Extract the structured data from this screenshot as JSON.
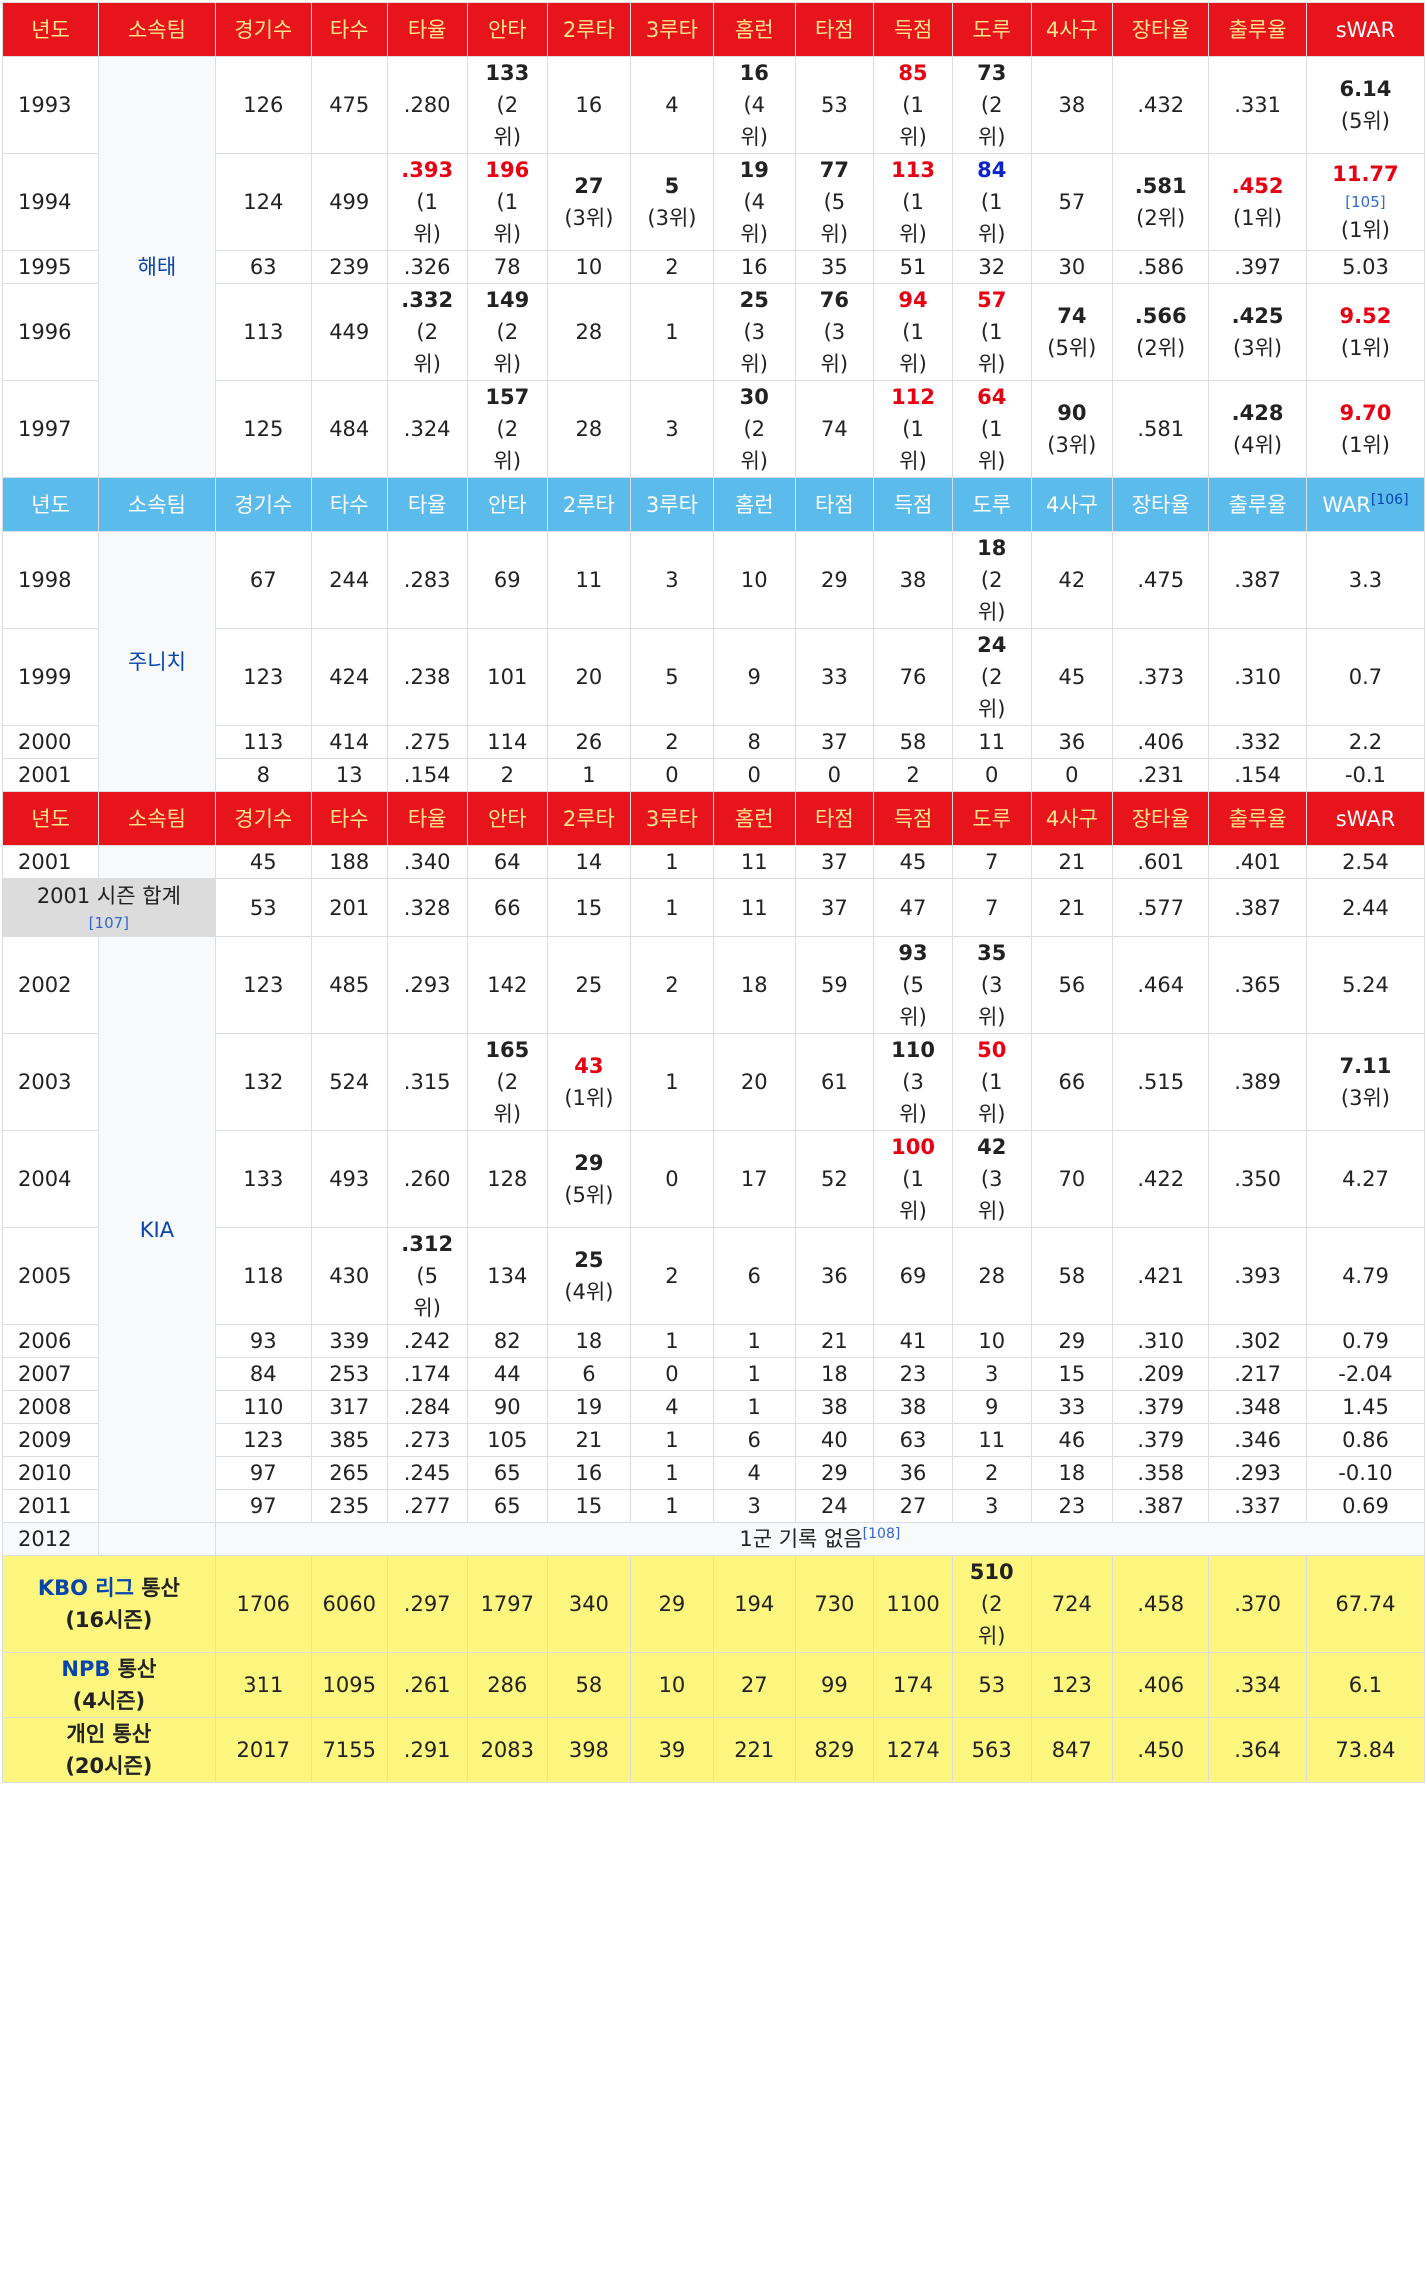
{
  "headers": {
    "year": "년도",
    "team": "소속팀",
    "games": "경기수",
    "ab": "타수",
    "avg": "타율",
    "hits": "안타",
    "doubles": "2루타",
    "triples": "3루타",
    "hr": "홈런",
    "rbi": "타점",
    "runs": "득점",
    "sb": "도루",
    "bb": "4사구",
    "slg": "장타율",
    "obp": "출루율",
    "swar": "sWAR",
    "war": "WAR"
  },
  "refs": {
    "r105": "[105]",
    "r106": "[106]",
    "r107": "[107]",
    "r108": "[108]"
  },
  "teams": {
    "haitai": "해태",
    "chunichi": "주니치",
    "kia": "KIA"
  },
  "rank": {
    "r1p": "(1위)",
    "r2p": "(2위)",
    "r3p": "(3위)",
    "r4p": "(4위)",
    "r5p": "(5위)",
    "r1a": "(1",
    "r2a": "(2",
    "r3a": "(3",
    "r4a": "(4",
    "r5a": "(5",
    "wi": "위)"
  },
  "kbo1": {
    "y1993": {
      "year": "1993",
      "g": "126",
      "ab": "475",
      "avg": ".280",
      "h": "133",
      "d": "16",
      "t": "4",
      "hr": "16",
      "rbi": "53",
      "r": "85",
      "sb": "73",
      "bb": "38",
      "slg": ".432",
      "obp": ".331",
      "war": "6.14"
    },
    "y1994": {
      "year": "1994",
      "g": "124",
      "ab": "499",
      "avg": ".393",
      "h": "196",
      "d": "27",
      "t": "5",
      "hr": "19",
      "rbi": "77",
      "r": "113",
      "sb": "84",
      "bb": "57",
      "slg": ".581",
      "obp": ".452",
      "war": "11.77"
    },
    "y1995": {
      "year": "1995",
      "g": "63",
      "ab": "239",
      "avg": ".326",
      "h": "78",
      "d": "10",
      "t": "2",
      "hr": "16",
      "rbi": "35",
      "r": "51",
      "sb": "32",
      "bb": "30",
      "slg": ".586",
      "obp": ".397",
      "war": "5.03"
    },
    "y1996": {
      "year": "1996",
      "g": "113",
      "ab": "449",
      "avg": ".332",
      "h": "149",
      "d": "28",
      "t": "1",
      "hr": "25",
      "rbi": "76",
      "r": "94",
      "sb": "57",
      "bb": "74",
      "slg": ".566",
      "obp": ".425",
      "war": "9.52"
    },
    "y1997": {
      "year": "1997",
      "g": "125",
      "ab": "484",
      "avg": ".324",
      "h": "157",
      "d": "28",
      "t": "3",
      "hr": "30",
      "rbi": "74",
      "r": "112",
      "sb": "64",
      "bb": "90",
      "slg": ".581",
      "obp": ".428",
      "war": "9.70"
    }
  },
  "npb": {
    "y1998": {
      "year": "1998",
      "g": "67",
      "ab": "244",
      "avg": ".283",
      "h": "69",
      "d": "11",
      "t": "3",
      "hr": "10",
      "rbi": "29",
      "r": "38",
      "sb": "18",
      "bb": "42",
      "slg": ".475",
      "obp": ".387",
      "war": "3.3"
    },
    "y1999": {
      "year": "1999",
      "g": "123",
      "ab": "424",
      "avg": ".238",
      "h": "101",
      "d": "20",
      "t": "5",
      "hr": "9",
      "rbi": "33",
      "r": "76",
      "sb": "24",
      "bb": "45",
      "slg": ".373",
      "obp": ".310",
      "war": "0.7"
    },
    "y2000": {
      "year": "2000",
      "g": "113",
      "ab": "414",
      "avg": ".275",
      "h": "114",
      "d": "26",
      "t": "2",
      "hr": "8",
      "rbi": "37",
      "r": "58",
      "sb": "11",
      "bb": "36",
      "slg": ".406",
      "obp": ".332",
      "war": "2.2"
    },
    "y2001": {
      "year": "2001",
      "g": "8",
      "ab": "13",
      "avg": ".154",
      "h": "2",
      "d": "1",
      "t": "0",
      "hr": "0",
      "rbi": "0",
      "r": "2",
      "sb": "0",
      "bb": "0",
      "slg": ".231",
      "obp": ".154",
      "war": "-0.1"
    }
  },
  "kbo2": {
    "y2001": {
      "year": "2001",
      "g": "45",
      "ab": "188",
      "avg": ".340",
      "h": "64",
      "d": "14",
      "t": "1",
      "hr": "11",
      "rbi": "37",
      "r": "45",
      "sb": "7",
      "bb": "21",
      "slg": ".601",
      "obp": ".401",
      "war": "2.54"
    },
    "s2001": {
      "label": "2001 시즌 합계",
      "g": "53",
      "ab": "201",
      "avg": ".328",
      "h": "66",
      "d": "15",
      "t": "1",
      "hr": "11",
      "rbi": "37",
      "r": "47",
      "sb": "7",
      "bb": "21",
      "slg": ".577",
      "obp": ".387",
      "war": "2.44"
    },
    "y2002": {
      "year": "2002",
      "g": "123",
      "ab": "485",
      "avg": ".293",
      "h": "142",
      "d": "25",
      "t": "2",
      "hr": "18",
      "rbi": "59",
      "r": "93",
      "sb": "35",
      "bb": "56",
      "slg": ".464",
      "obp": ".365",
      "war": "5.24"
    },
    "y2003": {
      "year": "2003",
      "g": "132",
      "ab": "524",
      "avg": ".315",
      "h": "165",
      "d": "43",
      "t": "1",
      "hr": "20",
      "rbi": "61",
      "r": "110",
      "sb": "50",
      "bb": "66",
      "slg": ".515",
      "obp": ".389",
      "war": "7.11"
    },
    "y2004": {
      "year": "2004",
      "g": "133",
      "ab": "493",
      "avg": ".260",
      "h": "128",
      "d": "29",
      "t": "0",
      "hr": "17",
      "rbi": "52",
      "r": "100",
      "sb": "42",
      "bb": "70",
      "slg": ".422",
      "obp": ".350",
      "war": "4.27"
    },
    "y2005": {
      "year": "2005",
      "g": "118",
      "ab": "430",
      "avg": ".312",
      "h": "134",
      "d": "25",
      "t": "2",
      "hr": "6",
      "rbi": "36",
      "r": "69",
      "sb": "28",
      "bb": "58",
      "slg": ".421",
      "obp": ".393",
      "war": "4.79"
    },
    "y2006": {
      "year": "2006",
      "g": "93",
      "ab": "339",
      "avg": ".242",
      "h": "82",
      "d": "18",
      "t": "1",
      "hr": "1",
      "rbi": "21",
      "r": "41",
      "sb": "10",
      "bb": "29",
      "slg": ".310",
      "obp": ".302",
      "war": "0.79"
    },
    "y2007": {
      "year": "2007",
      "g": "84",
      "ab": "253",
      "avg": ".174",
      "h": "44",
      "d": "6",
      "t": "0",
      "hr": "1",
      "rbi": "18",
      "r": "23",
      "sb": "3",
      "bb": "15",
      "slg": ".209",
      "obp": ".217",
      "war": "-2.04"
    },
    "y2008": {
      "year": "2008",
      "g": "110",
      "ab": "317",
      "avg": ".284",
      "h": "90",
      "d": "19",
      "t": "4",
      "hr": "1",
      "rbi": "38",
      "r": "38",
      "sb": "9",
      "bb": "33",
      "slg": ".379",
      "obp": ".348",
      "war": "1.45"
    },
    "y2009": {
      "year": "2009",
      "g": "123",
      "ab": "385",
      "avg": ".273",
      "h": "105",
      "d": "21",
      "t": "1",
      "hr": "6",
      "rbi": "40",
      "r": "63",
      "sb": "11",
      "bb": "46",
      "slg": ".379",
      "obp": ".346",
      "war": "0.86"
    },
    "y2010": {
      "year": "2010",
      "g": "97",
      "ab": "265",
      "avg": ".245",
      "h": "65",
      "d": "16",
      "t": "1",
      "hr": "4",
      "rbi": "29",
      "r": "36",
      "sb": "2",
      "bb": "18",
      "slg": ".358",
      "obp": ".293",
      "war": "-0.10"
    },
    "y2011": {
      "year": "2011",
      "g": "97",
      "ab": "235",
      "avg": ".277",
      "h": "65",
      "d": "15",
      "t": "1",
      "hr": "3",
      "rbi": "24",
      "r": "27",
      "sb": "3",
      "bb": "23",
      "slg": ".387",
      "obp": ".337",
      "war": "0.69"
    },
    "y2012": {
      "year": "2012",
      "note": "1군 기록 없음"
    }
  },
  "totals": {
    "kbo": {
      "league": "KBO 리그",
      "suffix": "통산",
      "seasons": "(16시즌)",
      "g": "1706",
      "ab": "6060",
      "avg": ".297",
      "h": "1797",
      "d": "340",
      "t": "29",
      "hr": "194",
      "rbi": "730",
      "r": "1100",
      "sb": "510",
      "bb": "724",
      "slg": ".458",
      "obp": ".370",
      "war": "67.74"
    },
    "npb": {
      "league": "NPB",
      "suffix": "통산",
      "seasons": "(4시즌)",
      "g": "311",
      "ab": "1095",
      "avg": ".261",
      "h": "286",
      "d": "58",
      "t": "10",
      "hr": "27",
      "rbi": "99",
      "r": "174",
      "sb": "53",
      "bb": "123",
      "slg": ".406",
      "obp": ".334",
      "war": "6.1"
    },
    "all": {
      "label": "개인 통산",
      "seasons": "(20시즌)",
      "g": "2017",
      "ab": "7155",
      "avg": ".291",
      "h": "2083",
      "d": "398",
      "t": "39",
      "hr": "221",
      "rbi": "829",
      "r": "1274",
      "sb": "563",
      "bb": "847",
      "slg": ".450",
      "obp": ".364",
      "war": "73.84"
    }
  },
  "colors": {
    "kbo_header": "#e8141c",
    "kbo_header_text": "#fde58d",
    "npb_header": "#5bbcec",
    "total_row": "#fcf67f",
    "rank_red": "#e60012",
    "rank_blue": "#0e24c8",
    "link": "#0645ad"
  }
}
